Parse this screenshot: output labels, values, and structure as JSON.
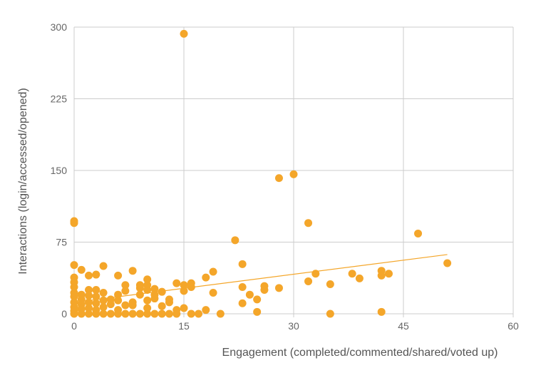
{
  "chart_data": {
    "type": "scatter",
    "title": "",
    "xlabel": "Engagement (completed/commented/shared/voted up)",
    "ylabel": "Interactions (login/accessed/opened)",
    "xlim": [
      0,
      60
    ],
    "ylim": [
      0,
      300
    ],
    "x_ticks": [
      0,
      15,
      30,
      45,
      60
    ],
    "y_ticks": [
      0,
      75,
      150,
      225,
      300
    ],
    "grid": true,
    "legend": "none",
    "colors": {
      "points": "#F4A62A",
      "trendline": "#F4A62A",
      "grid": "#cccccc",
      "text": "#666666"
    },
    "trendline": {
      "x": [
        0,
        51
      ],
      "y": [
        12,
        62
      ]
    },
    "points": [
      {
        "x": 15,
        "y": 293
      },
      {
        "x": 28,
        "y": 142
      },
      {
        "x": 30,
        "y": 146
      },
      {
        "x": 32,
        "y": 95
      },
      {
        "x": 22,
        "y": 77
      },
      {
        "x": 47,
        "y": 84
      },
      {
        "x": 51,
        "y": 53
      },
      {
        "x": 0,
        "y": 97
      },
      {
        "x": 0,
        "y": 95
      },
      {
        "x": 0,
        "y": 51
      },
      {
        "x": 23,
        "y": 52
      },
      {
        "x": 42,
        "y": 45
      },
      {
        "x": 42,
        "y": 40
      },
      {
        "x": 43,
        "y": 42
      },
      {
        "x": 38,
        "y": 42
      },
      {
        "x": 39,
        "y": 37
      },
      {
        "x": 33,
        "y": 42
      },
      {
        "x": 32,
        "y": 34
      },
      {
        "x": 35,
        "y": 31
      },
      {
        "x": 35,
        "y": 0
      },
      {
        "x": 42,
        "y": 2
      },
      {
        "x": 28,
        "y": 27
      },
      {
        "x": 26,
        "y": 29
      },
      {
        "x": 26,
        "y": 25
      },
      {
        "x": 25,
        "y": 15
      },
      {
        "x": 24,
        "y": 20
      },
      {
        "x": 23,
        "y": 28
      },
      {
        "x": 23,
        "y": 11
      },
      {
        "x": 25,
        "y": 2
      },
      {
        "x": 20,
        "y": 0
      },
      {
        "x": 19,
        "y": 44
      },
      {
        "x": 19,
        "y": 22
      },
      {
        "x": 18,
        "y": 38
      },
      {
        "x": 18,
        "y": 4
      },
      {
        "x": 17,
        "y": 0
      },
      {
        "x": 16,
        "y": 0
      },
      {
        "x": 16,
        "y": 32
      },
      {
        "x": 16,
        "y": 28
      },
      {
        "x": 15,
        "y": 30
      },
      {
        "x": 15,
        "y": 24
      },
      {
        "x": 15,
        "y": 6
      },
      {
        "x": 14,
        "y": 32
      },
      {
        "x": 14,
        "y": 4
      },
      {
        "x": 13,
        "y": 15
      },
      {
        "x": 13,
        "y": 12
      },
      {
        "x": 12,
        "y": 23
      },
      {
        "x": 12,
        "y": 8
      },
      {
        "x": 11,
        "y": 26
      },
      {
        "x": 11,
        "y": 20
      },
      {
        "x": 11,
        "y": 16
      },
      {
        "x": 10,
        "y": 36
      },
      {
        "x": 10,
        "y": 30
      },
      {
        "x": 10,
        "y": 25
      },
      {
        "x": 10,
        "y": 14
      },
      {
        "x": 10,
        "y": 6
      },
      {
        "x": 9,
        "y": 30
      },
      {
        "x": 9,
        "y": 27
      },
      {
        "x": 9,
        "y": 20
      },
      {
        "x": 8,
        "y": 45
      },
      {
        "x": 8,
        "y": 12
      },
      {
        "x": 8,
        "y": 9
      },
      {
        "x": 7,
        "y": 30
      },
      {
        "x": 7,
        "y": 24
      },
      {
        "x": 7,
        "y": 9
      },
      {
        "x": 6,
        "y": 40
      },
      {
        "x": 6,
        "y": 20
      },
      {
        "x": 6,
        "y": 14
      },
      {
        "x": 6,
        "y": 4
      },
      {
        "x": 5,
        "y": 15
      },
      {
        "x": 5,
        "y": 10
      },
      {
        "x": 4,
        "y": 50
      },
      {
        "x": 4,
        "y": 22
      },
      {
        "x": 4,
        "y": 14
      },
      {
        "x": 4,
        "y": 7
      },
      {
        "x": 3,
        "y": 41
      },
      {
        "x": 3,
        "y": 25
      },
      {
        "x": 3,
        "y": 18
      },
      {
        "x": 3,
        "y": 11
      },
      {
        "x": 3,
        "y": 4
      },
      {
        "x": 2,
        "y": 40
      },
      {
        "x": 2,
        "y": 25
      },
      {
        "x": 2,
        "y": 19
      },
      {
        "x": 2,
        "y": 12
      },
      {
        "x": 2,
        "y": 6
      },
      {
        "x": 1,
        "y": 46
      },
      {
        "x": 1,
        "y": 20
      },
      {
        "x": 1,
        "y": 15
      },
      {
        "x": 1,
        "y": 10
      },
      {
        "x": 1,
        "y": 5
      },
      {
        "x": 0,
        "y": 38
      },
      {
        "x": 0,
        "y": 33
      },
      {
        "x": 0,
        "y": 28
      },
      {
        "x": 0,
        "y": 22
      },
      {
        "x": 0,
        "y": 18
      },
      {
        "x": 0,
        "y": 12
      },
      {
        "x": 0,
        "y": 7
      },
      {
        "x": 0,
        "y": 3
      },
      {
        "x": 0,
        "y": 0
      },
      {
        "x": 1,
        "y": 0
      },
      {
        "x": 2,
        "y": 0
      },
      {
        "x": 3,
        "y": 0
      },
      {
        "x": 4,
        "y": 0
      },
      {
        "x": 5,
        "y": 0
      },
      {
        "x": 6,
        "y": 0
      },
      {
        "x": 7,
        "y": 0
      },
      {
        "x": 8,
        "y": 0
      },
      {
        "x": 9,
        "y": 0
      },
      {
        "x": 10,
        "y": 0
      },
      {
        "x": 11,
        "y": 0
      },
      {
        "x": 12,
        "y": 0
      },
      {
        "x": 13,
        "y": 0
      },
      {
        "x": 14,
        "y": 0
      }
    ]
  }
}
